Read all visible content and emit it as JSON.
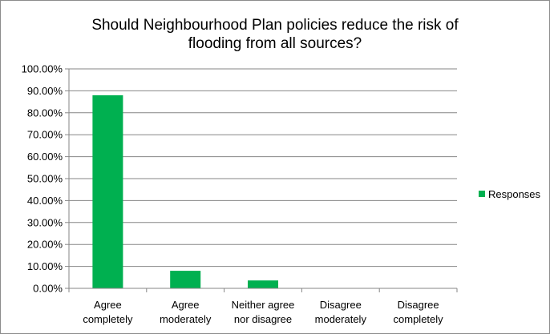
{
  "chart_data": {
    "type": "bar",
    "title_lines": [
      "Should Neighbourhood Plan policies reduce the risk of",
      "flooding from all sources?"
    ],
    "categories": [
      [
        "Agree",
        "completely"
      ],
      [
        "Agree",
        "moderately"
      ],
      [
        "Neither agree",
        "nor disagree"
      ],
      [
        "Disagree",
        "moderately"
      ],
      [
        "Disagree",
        "completely"
      ]
    ],
    "series": [
      {
        "name": "Responses",
        "values": [
          0.88,
          0.08,
          0.036,
          0.0,
          0.0
        ],
        "color": "#00B050"
      }
    ],
    "ylim": [
      0,
      1
    ],
    "y_ticks": [
      "0.00%",
      "10.00%",
      "20.00%",
      "30.00%",
      "40.00%",
      "50.00%",
      "60.00%",
      "70.00%",
      "80.00%",
      "90.00%",
      "100.00%"
    ],
    "grid": true,
    "legend_position": "right"
  }
}
